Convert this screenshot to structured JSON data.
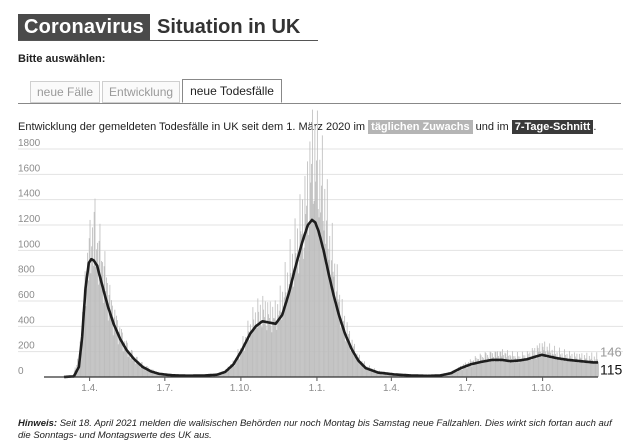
{
  "header": {
    "title_highlight": "Coronavirus",
    "title_rest": "Situation in UK"
  },
  "selector": {
    "label": "Bitte auswählen:",
    "tabs": [
      {
        "label": "neue Fälle",
        "active": false
      },
      {
        "label": "Entwicklung",
        "active": false
      },
      {
        "label": "neue Todesfälle",
        "active": true
      }
    ]
  },
  "description": {
    "prefix": "Entwicklung der gemeldeten Todesfälle in UK seit dem 1. März 2020 im",
    "chip_daily": "täglichen Zuwachs",
    "middle": "und im",
    "chip_avg": "7-Tage-Schnitt",
    "suffix": "."
  },
  "note": {
    "label": "Hinweis:",
    "text": "Seit 18. April 2021 melden die walisischen Behörden nur noch Montag bis Samstag neue Fallzahlen. Dies wirkt sich fortan auch auf die Sonntags- und Montagswerte des UK aus."
  },
  "colors": {
    "bars": "#bdbdbd",
    "line": "#1e1e1e",
    "grid": "#e3e3e3"
  },
  "chart_data": {
    "type": "bar",
    "title": "",
    "xlabel": "",
    "ylabel": "",
    "ylim": [
      0,
      1800
    ],
    "y_ticks": [
      "0",
      "200",
      "400",
      "600",
      "800",
      "1000",
      "1200",
      "1400",
      "1600",
      "1800"
    ],
    "x_ticks": [
      {
        "label": "1.4.",
        "day": 31
      },
      {
        "label": "1.7.",
        "day": 122
      },
      {
        "label": "1.10.",
        "day": 214
      },
      {
        "label": "1.1.",
        "day": 306
      },
      {
        "label": "1.4.",
        "day": 396
      },
      {
        "label": "1.7.",
        "day": 487
      },
      {
        "label": "1.10.",
        "day": 579
      }
    ],
    "days": 646,
    "series": [
      {
        "role": "daily",
        "anchors": [
          [
            0,
            0
          ],
          [
            10,
            8
          ],
          [
            18,
            160
          ],
          [
            24,
            600
          ],
          [
            28,
            900
          ],
          [
            31,
            980
          ],
          [
            33,
            1100
          ],
          [
            36,
            1150
          ],
          [
            38,
            1050
          ],
          [
            41,
            1000
          ],
          [
            44,
            920
          ],
          [
            48,
            820
          ],
          [
            52,
            700
          ],
          [
            56,
            560
          ],
          [
            62,
            430
          ],
          [
            70,
            300
          ],
          [
            78,
            200
          ],
          [
            86,
            140
          ],
          [
            95,
            90
          ],
          [
            105,
            55
          ],
          [
            115,
            30
          ],
          [
            125,
            18
          ],
          [
            140,
            12
          ],
          [
            155,
            10
          ],
          [
            170,
            12
          ],
          [
            185,
            20
          ],
          [
            195,
            50
          ],
          [
            205,
            110
          ],
          [
            215,
            230
          ],
          [
            225,
            380
          ],
          [
            232,
            470
          ],
          [
            240,
            510
          ],
          [
            248,
            480
          ],
          [
            255,
            470
          ],
          [
            262,
            560
          ],
          [
            270,
            750
          ],
          [
            278,
            920
          ],
          [
            285,
            1120
          ],
          [
            292,
            1300
          ],
          [
            298,
            1600
          ],
          [
            302,
            1750
          ],
          [
            305,
            1650
          ],
          [
            310,
            1500
          ],
          [
            315,
            1350
          ],
          [
            320,
            1050
          ],
          [
            326,
            850
          ],
          [
            332,
            600
          ],
          [
            338,
            430
          ],
          [
            346,
            280
          ],
          [
            355,
            150
          ],
          [
            365,
            80
          ],
          [
            380,
            40
          ],
          [
            400,
            25
          ],
          [
            420,
            15
          ],
          [
            440,
            10
          ],
          [
            455,
            14
          ],
          [
            470,
            35
          ],
          [
            480,
            80
          ],
          [
            490,
            110
          ],
          [
            500,
            140
          ],
          [
            510,
            160
          ],
          [
            520,
            170
          ],
          [
            530,
            180
          ],
          [
            540,
            160
          ],
          [
            550,
            150
          ],
          [
            560,
            160
          ],
          [
            570,
            200
          ],
          [
            578,
            230
          ],
          [
            585,
            210
          ],
          [
            595,
            180
          ],
          [
            610,
            160
          ],
          [
            625,
            150
          ],
          [
            640,
            146
          ]
        ]
      },
      {
        "role": "7-day average",
        "anchors": [
          [
            0,
            0
          ],
          [
            12,
            5
          ],
          [
            18,
            80
          ],
          [
            22,
            320
          ],
          [
            26,
            700
          ],
          [
            30,
            900
          ],
          [
            33,
            930
          ],
          [
            36,
            920
          ],
          [
            40,
            880
          ],
          [
            44,
            780
          ],
          [
            48,
            680
          ],
          [
            53,
            560
          ],
          [
            60,
            420
          ],
          [
            68,
            300
          ],
          [
            76,
            210
          ],
          [
            85,
            140
          ],
          [
            95,
            80
          ],
          [
            105,
            45
          ],
          [
            115,
            25
          ],
          [
            130,
            14
          ],
          [
            150,
            10
          ],
          [
            170,
            12
          ],
          [
            185,
            18
          ],
          [
            195,
            40
          ],
          [
            205,
            100
          ],
          [
            215,
            210
          ],
          [
            225,
            340
          ],
          [
            232,
            400
          ],
          [
            240,
            440
          ],
          [
            248,
            430
          ],
          [
            256,
            420
          ],
          [
            264,
            490
          ],
          [
            272,
            660
          ],
          [
            280,
            870
          ],
          [
            288,
            1060
          ],
          [
            295,
            1200
          ],
          [
            300,
            1240
          ],
          [
            304,
            1220
          ],
          [
            308,
            1150
          ],
          [
            314,
            1000
          ],
          [
            320,
            820
          ],
          [
            326,
            650
          ],
          [
            333,
            480
          ],
          [
            340,
            340
          ],
          [
            348,
            220
          ],
          [
            356,
            130
          ],
          [
            365,
            70
          ],
          [
            380,
            35
          ],
          [
            400,
            20
          ],
          [
            420,
            12
          ],
          [
            440,
            9
          ],
          [
            455,
            12
          ],
          [
            468,
            30
          ],
          [
            480,
            70
          ],
          [
            492,
            100
          ],
          [
            505,
            120
          ],
          [
            518,
            135
          ],
          [
            530,
            135
          ],
          [
            540,
            125
          ],
          [
            550,
            130
          ],
          [
            560,
            140
          ],
          [
            570,
            160
          ],
          [
            578,
            175
          ],
          [
            585,
            165
          ],
          [
            595,
            150
          ],
          [
            610,
            135
          ],
          [
            625,
            125
          ],
          [
            640,
            115
          ]
        ]
      }
    ],
    "end_labels": {
      "daily": "146",
      "average": "115"
    }
  }
}
